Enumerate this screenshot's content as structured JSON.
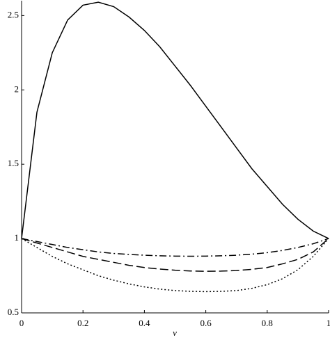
{
  "chart_data": {
    "type": "line",
    "x_label": "v",
    "x": [
      0,
      0.05,
      0.1,
      0.15,
      0.2,
      0.25,
      0.3,
      0.35,
      0.4,
      0.45,
      0.5,
      0.55,
      0.6,
      0.65,
      0.7,
      0.75,
      0.8,
      0.85,
      0.9,
      0.95,
      1
    ],
    "series": [
      {
        "color": "#000000",
        "dash": "solid",
        "values": [
          1,
          1.85,
          2.25,
          2.47,
          2.57,
          2.59,
          2.56,
          2.49,
          2.4,
          2.29,
          2.16,
          2.03,
          1.89,
          1.75,
          1.61,
          1.47,
          1.35,
          1.23,
          1.13,
          1.05,
          1
        ]
      },
      {
        "color": "#000000",
        "dash": "dashdot",
        "values": [
          1,
          0.98,
          0.96,
          0.94,
          0.925,
          0.91,
          0.9,
          0.893,
          0.888,
          0.884,
          0.882,
          0.881,
          0.882,
          0.884,
          0.888,
          0.895,
          0.905,
          0.92,
          0.94,
          0.965,
          1
        ]
      },
      {
        "color": "#000000",
        "dash": "dashed",
        "values": [
          1,
          0.97,
          0.94,
          0.91,
          0.88,
          0.86,
          0.84,
          0.82,
          0.805,
          0.795,
          0.787,
          0.782,
          0.78,
          0.781,
          0.785,
          0.793,
          0.805,
          0.83,
          0.86,
          0.91,
          1
        ]
      },
      {
        "color": "#000000",
        "dash": "dotted",
        "values": [
          1,
          0.94,
          0.88,
          0.83,
          0.79,
          0.75,
          0.72,
          0.695,
          0.675,
          0.66,
          0.65,
          0.645,
          0.643,
          0.645,
          0.65,
          0.665,
          0.69,
          0.73,
          0.79,
          0.88,
          1
        ]
      }
    ],
    "xlim": [
      0,
      1
    ],
    "xticks": [
      0,
      0.2,
      0.4,
      0.6,
      0.8,
      1
    ],
    "ylim": [
      0.5,
      2.6
    ],
    "yticks": [
      0.5,
      1,
      1.5,
      2,
      2.5
    ]
  }
}
